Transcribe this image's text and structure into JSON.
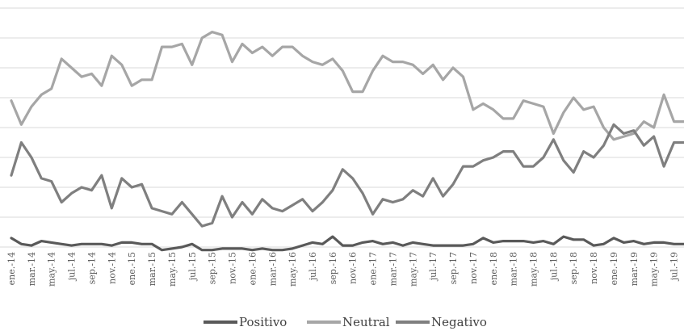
{
  "chart_data": {
    "type": "line",
    "title": "",
    "xlabel": "",
    "ylabel": "",
    "ylim": [
      0,
      80
    ],
    "grid": true,
    "legend_position": "bottom",
    "tick_labels": [
      "ene.-14",
      "mar.-14",
      "may.-14",
      "jul.-14",
      "sep.-14",
      "nov.-14",
      "ene.-15",
      "mar.-15",
      "may.-15",
      "jul.-15",
      "sep.-15",
      "nov.-15",
      "ene.-16",
      "mar.-16",
      "may.-16",
      "jul.-16",
      "sep.-16",
      "nov.-16",
      "ene.-17",
      "mar.-17",
      "may.-17",
      "jul.-17",
      "sep.-17",
      "nov.-17",
      "ene.-18",
      "mar.-18",
      "may.-18",
      "jul.-18",
      "sep.-18",
      "nov.-18",
      "ene.-19",
      "mar.-19",
      "may.-19",
      "jul.-19"
    ],
    "categories": [
      "2014-01",
      "2014-02",
      "2014-03",
      "2014-04",
      "2014-05",
      "2014-06",
      "2014-07",
      "2014-08",
      "2014-09",
      "2014-10",
      "2014-11",
      "2014-12",
      "2015-01",
      "2015-02",
      "2015-03",
      "2015-04",
      "2015-05",
      "2015-06",
      "2015-07",
      "2015-08",
      "2015-09",
      "2015-10",
      "2015-11",
      "2015-12",
      "2016-01",
      "2016-02",
      "2016-03",
      "2016-04",
      "2016-05",
      "2016-06",
      "2016-07",
      "2016-08",
      "2016-09",
      "2016-10",
      "2016-11",
      "2016-12",
      "2017-01",
      "2017-02",
      "2017-03",
      "2017-04",
      "2017-05",
      "2017-06",
      "2017-07",
      "2017-08",
      "2017-09",
      "2017-10",
      "2017-11",
      "2017-12",
      "2018-01",
      "2018-02",
      "2018-03",
      "2018-04",
      "2018-05",
      "2018-06",
      "2018-07",
      "2018-08",
      "2018-09",
      "2018-10",
      "2018-11",
      "2018-12",
      "2019-01",
      "2019-02",
      "2019-03",
      "2019-04",
      "2019-05",
      "2019-06",
      "2019-07",
      "2019-08"
    ],
    "series": [
      {
        "name": "Positivo",
        "color": "#595959",
        "values": [
          3,
          1,
          0.5,
          2,
          1.5,
          1,
          0.5,
          1,
          1,
          1,
          0.5,
          1.5,
          1.5,
          1,
          1,
          -1,
          -0.5,
          0,
          1,
          -1,
          -1,
          -0.5,
          -0.5,
          -0.5,
          -1,
          -0.5,
          -1,
          -1,
          -0.5,
          0.5,
          1.5,
          1,
          3.5,
          0.5,
          0.5,
          1.5,
          2,
          1,
          1.5,
          0.5,
          1.5,
          1,
          0.5,
          0.5,
          0.5,
          0.5,
          1,
          3,
          1.5,
          2,
          2,
          2,
          1.5,
          2,
          1,
          3.5,
          2.5,
          2.5,
          0.5,
          1,
          3,
          1.5,
          2,
          1,
          1.5,
          1.5,
          1,
          1
        ]
      },
      {
        "name": "Neutral",
        "color": "#a6a6a6",
        "values": [
          49,
          41,
          47,
          51,
          53,
          63,
          60,
          57,
          58,
          54,
          64,
          61,
          54,
          56,
          56,
          67,
          67,
          68,
          61,
          70,
          72,
          71,
          62,
          68,
          65,
          67,
          64,
          67,
          67,
          64,
          62,
          61,
          63,
          59,
          52,
          52,
          59,
          64,
          62,
          62,
          61,
          58,
          61,
          56,
          60,
          57,
          46,
          48,
          46,
          43,
          43,
          49,
          48,
          47,
          38,
          45,
          50,
          46,
          47,
          40,
          36,
          37,
          38,
          42,
          40,
          51,
          42,
          42
        ]
      },
      {
        "name": "Negativo",
        "color": "#7f7f7f",
        "values": [
          24,
          35,
          30,
          23,
          22,
          15,
          18,
          20,
          19,
          24,
          13,
          23,
          20,
          21,
          13,
          12,
          11,
          15,
          11,
          7,
          8,
          17,
          10,
          15,
          11,
          16,
          13,
          12,
          14,
          16,
          12,
          15,
          19,
          26,
          23,
          18,
          11,
          16,
          15,
          16,
          19,
          17,
          23,
          17,
          21,
          27,
          27,
          29,
          30,
          32,
          32,
          27,
          27,
          30,
          36,
          29,
          25,
          32,
          30,
          34,
          41,
          38,
          39,
          34,
          37,
          27,
          35,
          35
        ]
      }
    ]
  }
}
